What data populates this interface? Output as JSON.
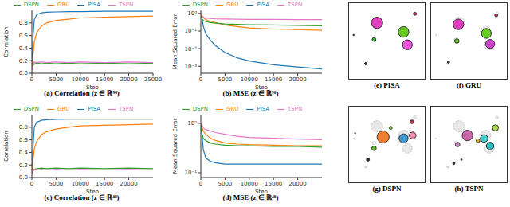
{
  "chart_data": [
    {
      "type": "line",
      "title": "(a) Correlation (z ∈ ℝ⁹⁶)",
      "x_label": "Step",
      "y_label": "Correlation",
      "legend": "top",
      "x": [
        0,
        250,
        500,
        1000,
        2000,
        3000,
        5000,
        7500,
        10000,
        15000,
        20000,
        25000
      ],
      "xlim": [
        0,
        25000
      ],
      "xticks": [
        0,
        5000,
        10000,
        15000,
        20000,
        25000
      ],
      "ylim": [
        0,
        1
      ],
      "yticks": [
        {
          "value": 0,
          "label": "0.0"
        },
        {
          "value": 0.2,
          "label": "0.2"
        },
        {
          "value": 0.4,
          "label": "0.4"
        },
        {
          "value": 0.6,
          "label": "0.6"
        },
        {
          "value": 0.8,
          "label": "0.8"
        }
      ],
      "series": [
        {
          "name": "PISA",
          "color": "#1f77b4",
          "values": [
            0.05,
            0.6,
            0.85,
            0.93,
            0.96,
            0.97,
            0.975,
            0.98,
            0.98,
            0.985,
            0.985,
            0.985
          ]
        },
        {
          "name": "GRU",
          "color": "#ff7f0e",
          "values": [
            0.05,
            0.3,
            0.5,
            0.65,
            0.75,
            0.8,
            0.84,
            0.86,
            0.88,
            0.89,
            0.9,
            0.91
          ]
        },
        {
          "name": "DSPN",
          "color": "#2ca02c",
          "values": [
            0.05,
            0.12,
            0.15,
            0.16,
            0.15,
            0.16,
            0.15,
            0.16,
            0.15,
            0.16,
            0.15,
            0.16
          ]
        },
        {
          "name": "TSPN",
          "color": "#e377c2",
          "values": [
            0.05,
            0.15,
            0.18,
            0.17,
            0.18,
            0.17,
            0.18,
            0.17,
            0.18,
            0.17,
            0.18,
            0.17
          ]
        }
      ]
    },
    {
      "type": "line",
      "title": "(b) MSE (z ∈ ℝ⁹⁶)",
      "x_label": "Step",
      "y_label": "Mean Squared Error",
      "legend": "top",
      "log": "y",
      "x": [
        0,
        250,
        500,
        1000,
        2000,
        3000,
        5000,
        7500,
        10000,
        15000,
        20000,
        25000
      ],
      "xlim": [
        0,
        25000
      ],
      "xticks": [
        0,
        5000,
        10000,
        15000,
        20000
      ],
      "ylim": [
        0.0004,
        1.5
      ],
      "yticks": [
        {
          "value": 1,
          "label": "10⁰"
        },
        {
          "value": 0.1,
          "label": "10⁻¹"
        },
        {
          "value": 0.01,
          "label": "10⁻²"
        },
        {
          "value": 0.001,
          "label": "10⁻³"
        }
      ],
      "series": [
        {
          "name": "PISA",
          "color": "#1f77b4",
          "values": [
            1,
            0.5,
            0.2,
            0.07,
            0.03,
            0.015,
            0.006,
            0.003,
            0.002,
            0.0012,
            0.0009,
            0.0007
          ]
        },
        {
          "name": "GRU",
          "color": "#ff7f0e",
          "values": [
            1,
            0.8,
            0.6,
            0.45,
            0.35,
            0.3,
            0.22,
            0.18,
            0.15,
            0.13,
            0.12,
            0.11
          ]
        },
        {
          "name": "DSPN",
          "color": "#2ca02c",
          "values": [
            1,
            0.5,
            0.4,
            0.35,
            0.3,
            0.28,
            0.25,
            0.24,
            0.23,
            0.22,
            0.21,
            0.2
          ]
        },
        {
          "name": "TSPN",
          "color": "#e377c2",
          "values": [
            1,
            0.7,
            0.6,
            0.55,
            0.52,
            0.5,
            0.48,
            0.47,
            0.46,
            0.46,
            0.45,
            0.45
          ]
        }
      ]
    },
    {
      "type": "line",
      "title": "(c) Correlation (z ∈ ℝ⁴⁸)",
      "x_label": "Step",
      "y_label": "Correlation",
      "legend": "top",
      "x": [
        0,
        250,
        500,
        1000,
        2000,
        3000,
        5000,
        7500,
        10000,
        15000,
        20000,
        25000
      ],
      "xlim": [
        0,
        25000
      ],
      "xticks": [
        0,
        5000,
        10000,
        15000,
        20000
      ],
      "ylim": [
        0,
        1
      ],
      "yticks": [
        {
          "value": 0,
          "label": "0.0"
        },
        {
          "value": 0.2,
          "label": "0.2"
        },
        {
          "value": 0.4,
          "label": "0.4"
        },
        {
          "value": 0.6,
          "label": "0.6"
        },
        {
          "value": 0.8,
          "label": "0.8"
        }
      ],
      "series": [
        {
          "name": "PISA",
          "color": "#1f77b4",
          "values": [
            0.05,
            0.5,
            0.8,
            0.88,
            0.91,
            0.92,
            0.925,
            0.93,
            0.93,
            0.93,
            0.93,
            0.93
          ]
        },
        {
          "name": "GRU",
          "color": "#ff7f0e",
          "values": [
            0.05,
            0.3,
            0.45,
            0.58,
            0.68,
            0.73,
            0.77,
            0.8,
            0.82,
            0.83,
            0.84,
            0.85
          ]
        },
        {
          "name": "DSPN",
          "color": "#2ca02c",
          "values": [
            0.05,
            0.1,
            0.13,
            0.14,
            0.15,
            0.14,
            0.15,
            0.14,
            0.15,
            0.14,
            0.15,
            0.14
          ]
        },
        {
          "name": "TSPN",
          "color": "#e377c2",
          "values": [
            0.05,
            0.12,
            0.13,
            0.12,
            0.13,
            0.12,
            0.13,
            0.12,
            0.13,
            0.12,
            0.13,
            0.12
          ]
        }
      ]
    },
    {
      "type": "line",
      "title": "(d) MSE (z ∈ ℝ⁴⁸)",
      "x_label": "Step",
      "y_label": "Mean Squared Error",
      "legend": "top",
      "log": "y",
      "x": [
        0,
        250,
        500,
        1000,
        2000,
        3000,
        5000,
        7500,
        10000,
        15000,
        20000,
        25000
      ],
      "xlim": [
        0,
        25000
      ],
      "xticks": [
        0,
        5000,
        10000,
        15000,
        20000
      ],
      "ylim": [
        0.08,
        1.5
      ],
      "yticks": [
        {
          "value": 1,
          "label": "10⁰"
        },
        {
          "value": 0.1,
          "label": "10⁻¹"
        }
      ],
      "series": [
        {
          "name": "PISA",
          "color": "#1f77b4",
          "values": [
            1,
            0.6,
            0.3,
            0.2,
            0.17,
            0.16,
            0.15,
            0.15,
            0.15,
            0.15,
            0.15,
            0.15
          ]
        },
        {
          "name": "GRU",
          "color": "#ff7f0e",
          "values": [
            1,
            0.8,
            0.7,
            0.6,
            0.5,
            0.45,
            0.4,
            0.38,
            0.37,
            0.36,
            0.35,
            0.35
          ]
        },
        {
          "name": "DSPN",
          "color": "#2ca02c",
          "values": [
            1,
            0.6,
            0.5,
            0.45,
            0.4,
            0.38,
            0.36,
            0.35,
            0.35,
            0.34,
            0.34,
            0.33
          ]
        },
        {
          "name": "TSPN",
          "color": "#e377c2",
          "values": [
            1,
            0.9,
            0.8,
            0.75,
            0.7,
            0.65,
            0.6,
            0.55,
            0.52,
            0.5,
            0.48,
            0.47
          ]
        }
      ]
    },
    {
      "type": "scatter",
      "title": "(e) PISA",
      "tick_labels": false,
      "xlim": [
        0,
        1
      ],
      "ylim": [
        0,
        1
      ],
      "targets": {
        "x": [
          0.37,
          0.72,
          0.77,
          0.33,
          0.87,
          0.22,
          0.06
        ],
        "y": [
          0.74,
          0.62,
          0.45,
          0.52,
          0.86,
          0.2,
          0.58
        ],
        "size": [
          0.075,
          0.07,
          0.065,
          0.025,
          0.02,
          0.015,
          0.006
        ]
      },
      "points": {
        "x": [
          0.37,
          0.72,
          0.77,
          0.33,
          0.87,
          0.22,
          0.06
        ],
        "y": [
          0.74,
          0.62,
          0.45,
          0.52,
          0.86,
          0.2,
          0.58
        ],
        "size": [
          0.075,
          0.07,
          0.065,
          0.025,
          0.02,
          0.015,
          0.006
        ],
        "colors": [
          "#e040c0",
          "#66cc22",
          "#ee55dd",
          "#44bb44",
          "#dd4466",
          "#333333",
          "#555555"
        ]
      }
    },
    {
      "type": "scatter",
      "title": "(f) GRU",
      "tick_labels": false,
      "xlim": [
        0,
        1
      ],
      "ylim": [
        0,
        1
      ],
      "targets": {
        "x": [
          0.37,
          0.72,
          0.77,
          0.33,
          0.87,
          0.22,
          0.06
        ],
        "y": [
          0.74,
          0.62,
          0.45,
          0.52,
          0.86,
          0.2,
          0.58
        ],
        "size": [
          0.075,
          0.07,
          0.065,
          0.025,
          0.02,
          0.015,
          0.006
        ]
      },
      "points": {
        "x": [
          0.36,
          0.73,
          0.78,
          0.34,
          0.86,
          0.23
        ],
        "y": [
          0.72,
          0.6,
          0.46,
          0.5,
          0.84,
          0.22
        ],
        "size": [
          0.07,
          0.065,
          0.06,
          0.03,
          0.02,
          0.015
        ],
        "colors": [
          "#e040c0",
          "#66cc22",
          "#cc44cc",
          "#66bb33",
          "#dd4466",
          "#333333"
        ]
      }
    },
    {
      "type": "scatter",
      "title": "(g) DSPN",
      "tick_labels": false,
      "xlim": [
        0,
        1
      ],
      "ylim": [
        0,
        1
      ],
      "targets": {
        "x": [
          0.37,
          0.72,
          0.77,
          0.33,
          0.87,
          0.22,
          0.06
        ],
        "y": [
          0.74,
          0.62,
          0.45,
          0.52,
          0.86,
          0.2,
          0.58
        ],
        "size": [
          0.075,
          0.07,
          0.065,
          0.025,
          0.02,
          0.015,
          0.006
        ]
      },
      "points": {
        "x": [
          0.45,
          0.72,
          0.84,
          0.33,
          0.83,
          0.25,
          0.08,
          0.55
        ],
        "y": [
          0.6,
          0.58,
          0.62,
          0.45,
          0.8,
          0.3,
          0.65,
          0.72
        ],
        "size": [
          0.08,
          0.06,
          0.045,
          0.03,
          0.025,
          0.02,
          0.008,
          0.02
        ],
        "colors": [
          "#f08030",
          "#4499cc",
          "#ee88aa",
          "#66bb33",
          "#cc3344",
          "#333333",
          "#555555",
          "#88cc55"
        ]
      }
    },
    {
      "type": "scatter",
      "title": "(h) TSPN",
      "tick_labels": false,
      "xlim": [
        0,
        1
      ],
      "ylim": [
        0,
        1
      ],
      "targets": {
        "x": [
          0.37,
          0.72,
          0.77,
          0.33,
          0.87,
          0.22,
          0.06
        ],
        "y": [
          0.74,
          0.62,
          0.45,
          0.52,
          0.86,
          0.2,
          0.58
        ],
        "size": [
          0.075,
          0.07,
          0.065,
          0.025,
          0.02,
          0.015,
          0.006
        ]
      },
      "points": {
        "x": [
          0.48,
          0.7,
          0.78,
          0.85,
          0.35,
          0.62,
          0.3,
          0.4
        ],
        "y": [
          0.62,
          0.58,
          0.48,
          0.72,
          0.5,
          0.55,
          0.25,
          0.3
        ],
        "size": [
          0.07,
          0.05,
          0.05,
          0.04,
          0.03,
          0.025,
          0.015,
          0.01
        ],
        "colors": [
          "#cc66aa",
          "#44cccc",
          "#33bbbb",
          "#aadd44",
          "#cc88cc",
          "#ddaa22",
          "#333333",
          "#555555"
        ]
      }
    }
  ]
}
